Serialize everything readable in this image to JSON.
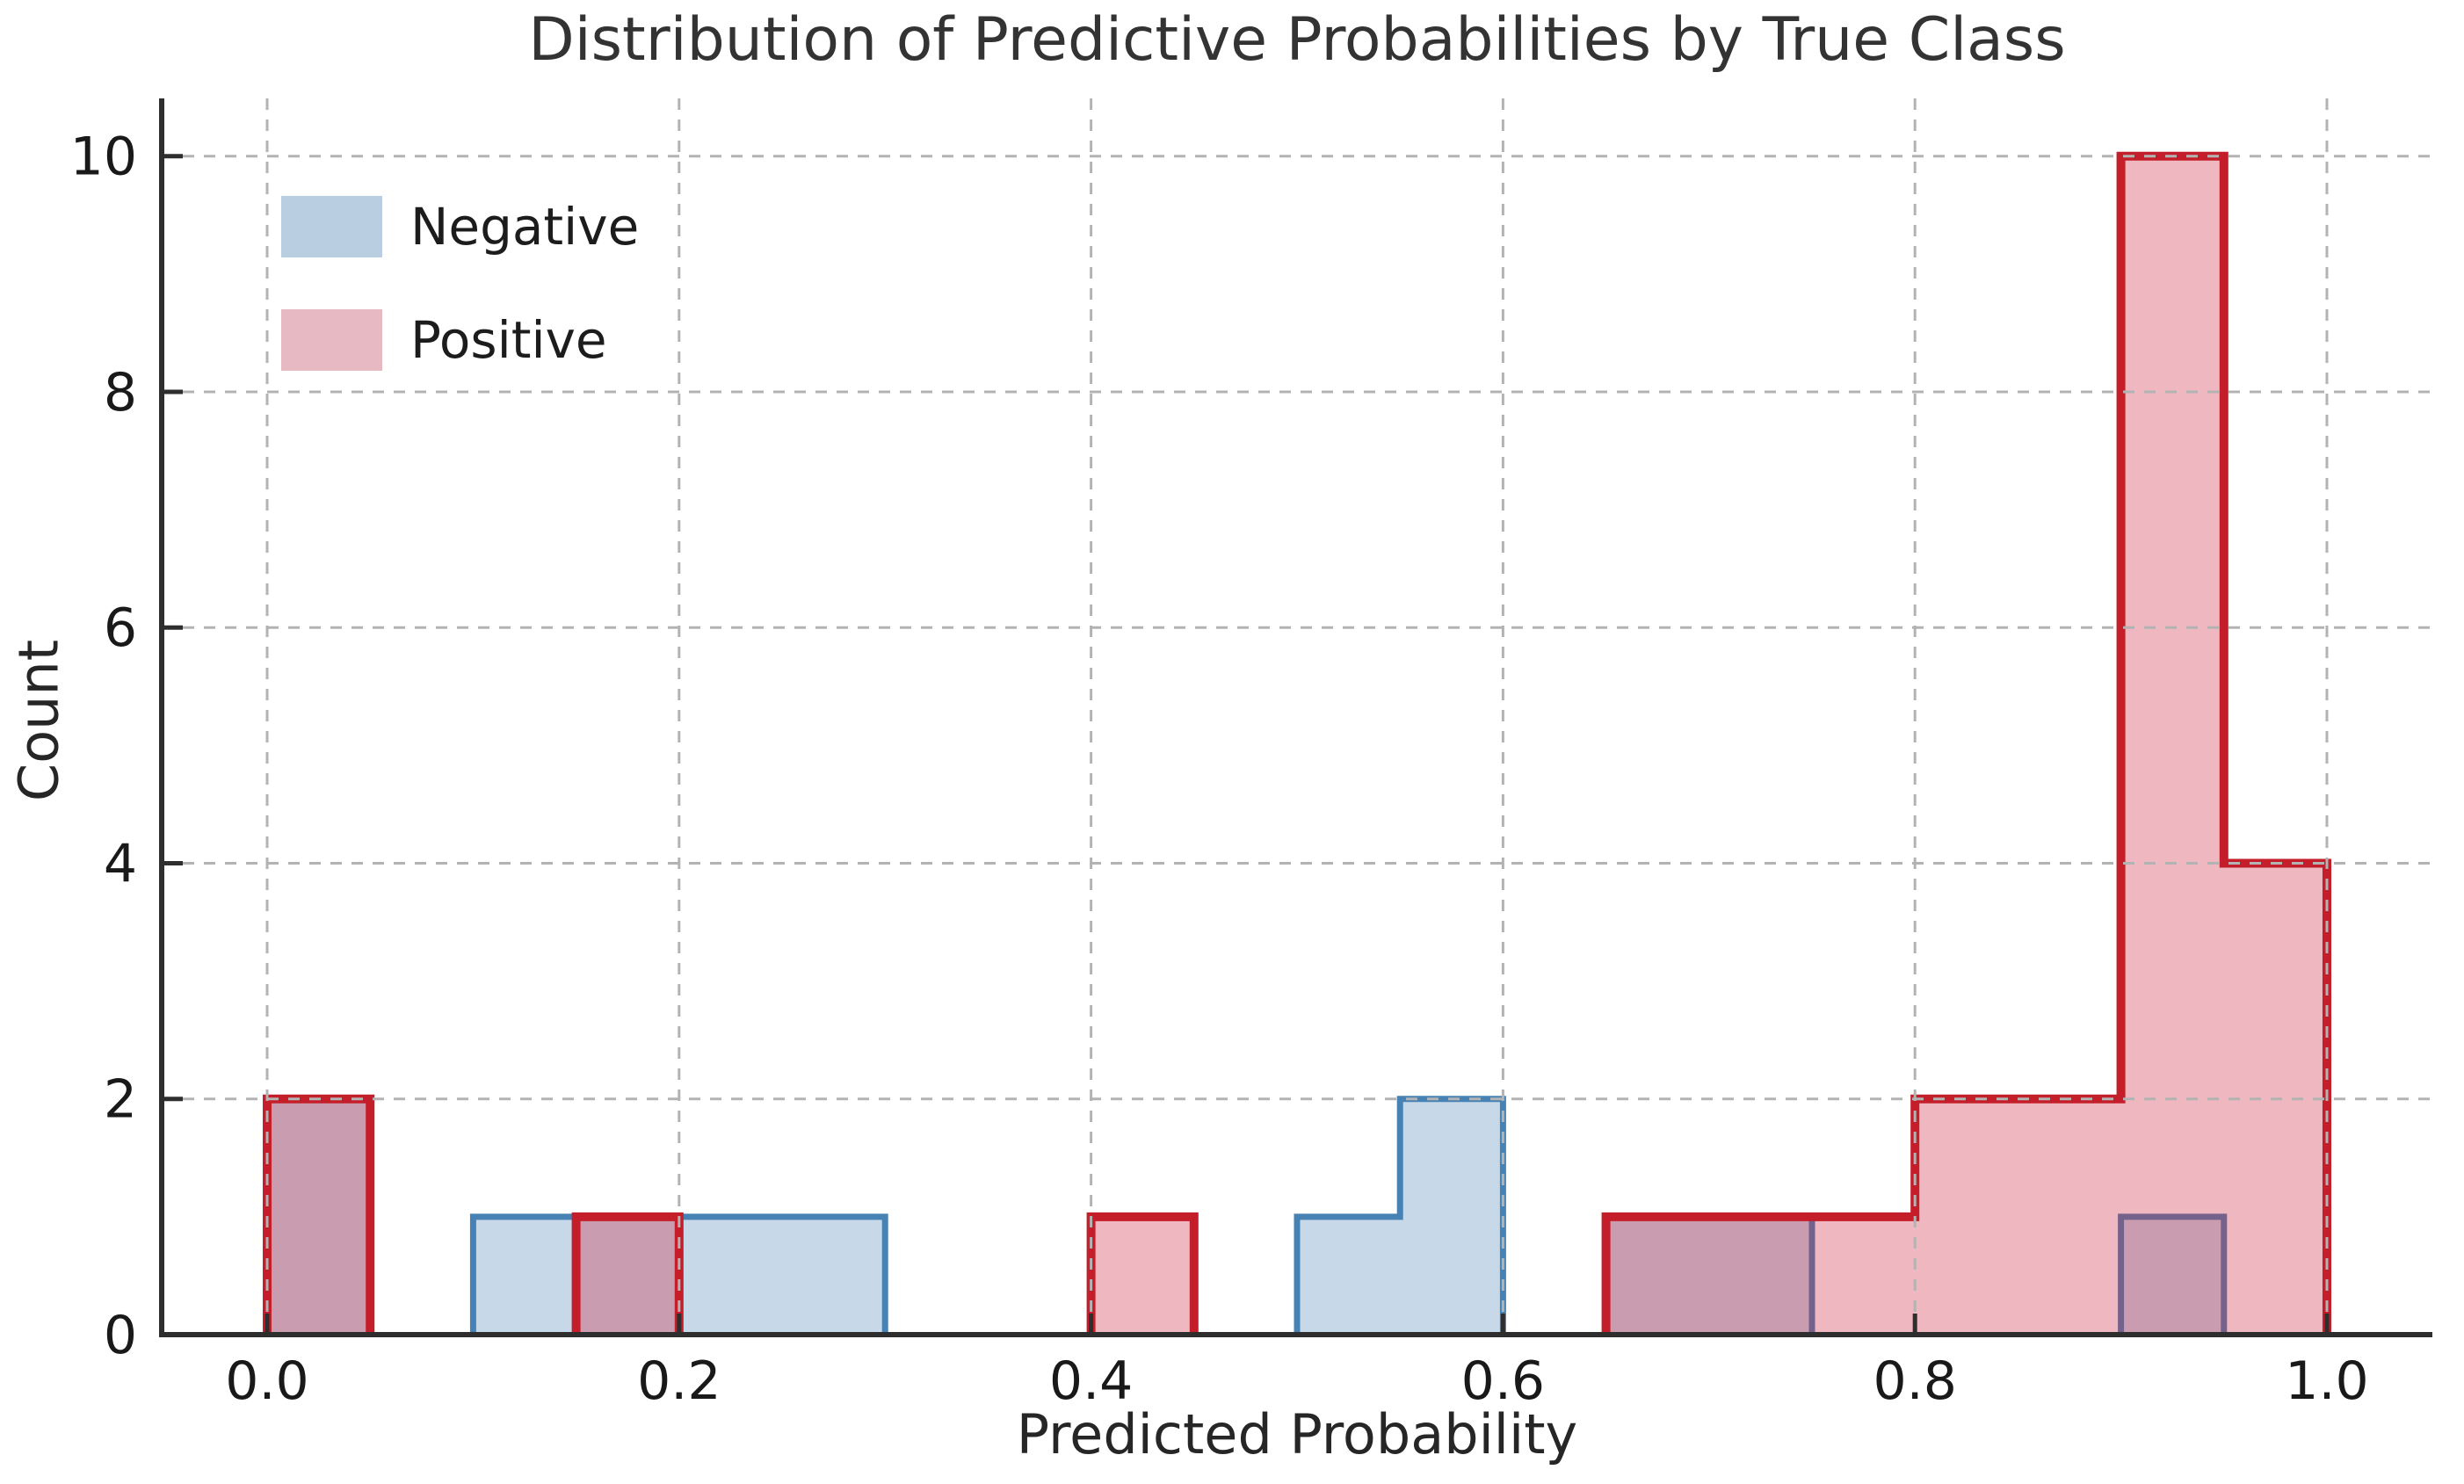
{
  "chart_data": {
    "type": "histogram",
    "title": "Distribution of Predictive Probabilities by True Class",
    "xlabel": "Predicted Probability",
    "ylabel": "Count",
    "bin_width": 0.05,
    "grid": true,
    "grid_style": "dashed",
    "legend_position": "upper-left",
    "xlim": [
      -0.0512,
      1.0512
    ],
    "ylim": [
      0,
      10.49
    ],
    "xticks": [
      0.0,
      0.2,
      0.4,
      0.6,
      0.8,
      1.0
    ],
    "xtick_labels": [
      "0.0",
      "0.2",
      "0.4",
      "0.6",
      "0.8",
      "1.0"
    ],
    "yticks": [
      0,
      2,
      4,
      6,
      8,
      10
    ],
    "ytick_labels": [
      "0",
      "2",
      "4",
      "6",
      "8",
      "10"
    ],
    "colors": {
      "negative_fill": "rgba(70,130,180,0.30)",
      "negative_edge": "#4682b4",
      "positive_fill": "rgba(205,35,60,0.33)",
      "positive_edge": "#c41e2a",
      "overlap_fill": "#cdaab5",
      "grid": "#b3b3b3",
      "spine": "#2e2e2e"
    },
    "series": [
      {
        "name": "Negative",
        "fill": "rgba(70,130,180,0.30)",
        "edge": "#4682b4",
        "swatch": "#b9cfe1",
        "bins": [
          {
            "x0": 0.0,
            "x1": 0.05,
            "count": 2
          },
          {
            "x0": 0.1,
            "x1": 0.15,
            "count": 1
          },
          {
            "x0": 0.15,
            "x1": 0.2,
            "count": 1
          },
          {
            "x0": 0.2,
            "x1": 0.25,
            "count": 1
          },
          {
            "x0": 0.25,
            "x1": 0.3,
            "count": 1
          },
          {
            "x0": 0.5,
            "x1": 0.55,
            "count": 1
          },
          {
            "x0": 0.55,
            "x1": 0.6,
            "count": 2
          },
          {
            "x0": 0.65,
            "x1": 0.7,
            "count": 1
          },
          {
            "x0": 0.7,
            "x1": 0.75,
            "count": 1
          },
          {
            "x0": 0.9,
            "x1": 0.95,
            "count": 1
          }
        ]
      },
      {
        "name": "Positive",
        "fill": "rgba(205,35,60,0.33)",
        "edge": "#c41e2a",
        "swatch": "#e7b9c2",
        "bins": [
          {
            "x0": 0.0,
            "x1": 0.05,
            "count": 2
          },
          {
            "x0": 0.15,
            "x1": 0.2,
            "count": 1
          },
          {
            "x0": 0.4,
            "x1": 0.45,
            "count": 1
          },
          {
            "x0": 0.65,
            "x1": 0.7,
            "count": 1
          },
          {
            "x0": 0.7,
            "x1": 0.75,
            "count": 1
          },
          {
            "x0": 0.75,
            "x1": 0.8,
            "count": 1
          },
          {
            "x0": 0.8,
            "x1": 0.85,
            "count": 2
          },
          {
            "x0": 0.85,
            "x1": 0.9,
            "count": 2
          },
          {
            "x0": 0.9,
            "x1": 0.95,
            "count": 10
          },
          {
            "x0": 0.95,
            "x1": 1.0,
            "count": 4
          }
        ]
      }
    ]
  }
}
